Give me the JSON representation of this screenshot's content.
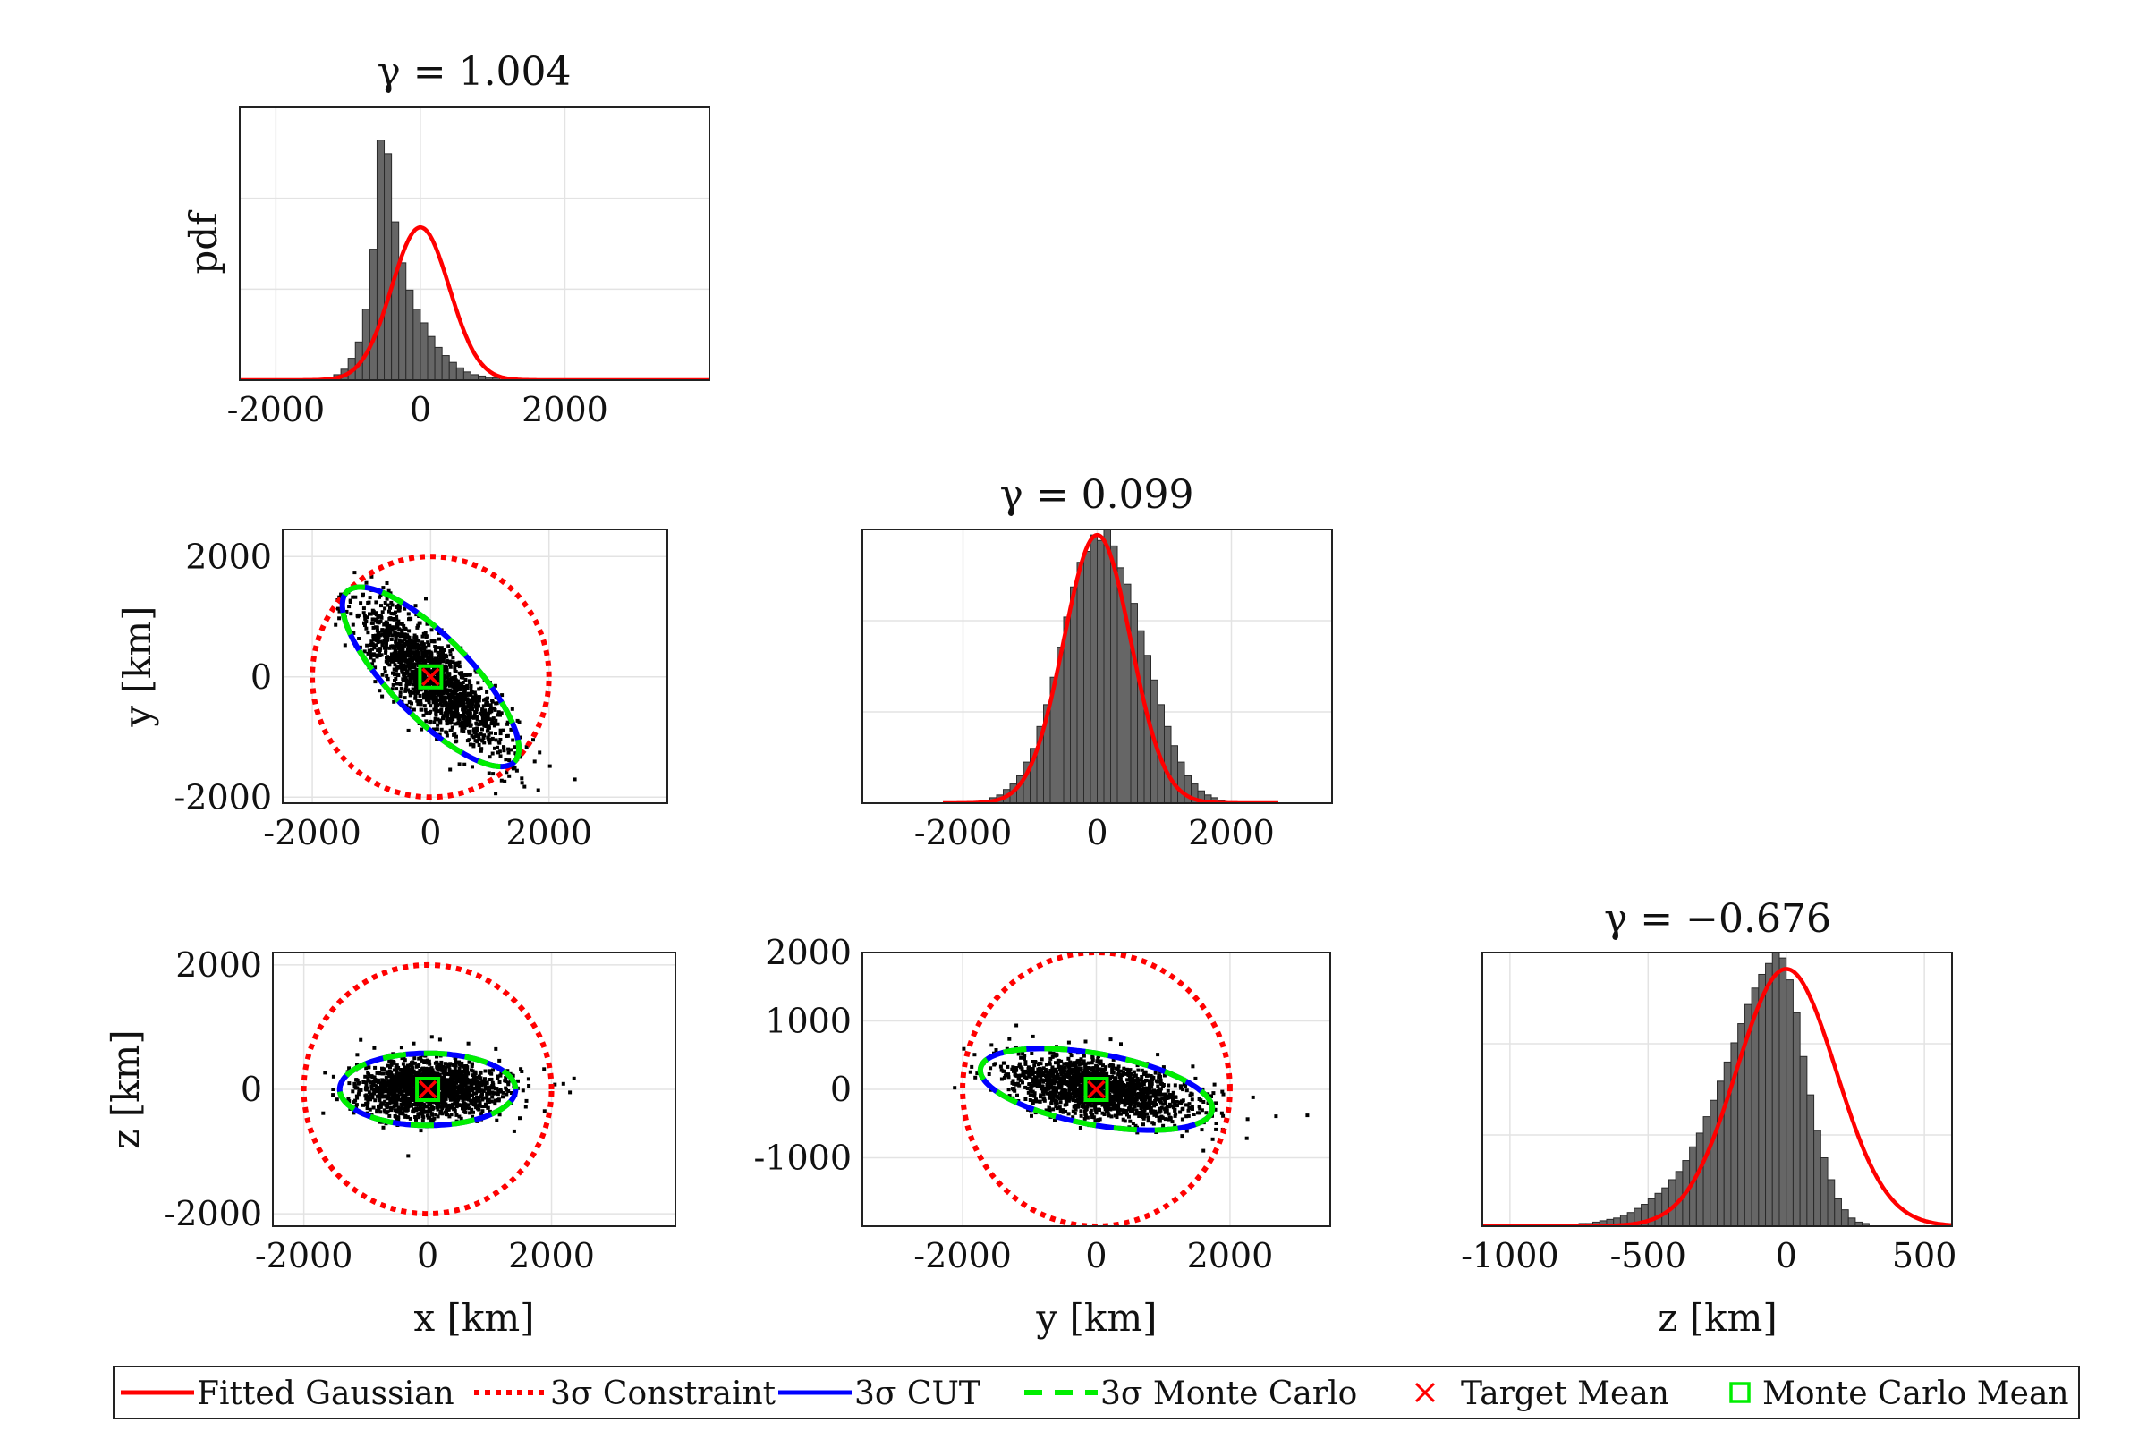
{
  "legend": [
    {
      "label": "Fitted Gaussian",
      "style": "solid",
      "color": "#ff0000"
    },
    {
      "label": "3σ Constraint",
      "style": "dotted",
      "color": "#ff0000"
    },
    {
      "label": "3σ CUT",
      "style": "solid",
      "color": "#0000ff"
    },
    {
      "label": "3σ Monte Carlo",
      "style": "dashed",
      "color": "#00ee00"
    },
    {
      "label": "Target Mean",
      "style": "x-marker",
      "color": "#ff0000"
    },
    {
      "label": "Monte Carlo Mean",
      "style": "square-marker",
      "color": "#00ee00"
    }
  ],
  "colors": {
    "bar_fill": "#666666",
    "scatter": "#000000",
    "gauss": "#ff0000",
    "constraint": "#ff0000",
    "cut": "#0000ff",
    "mc": "#00ee00"
  },
  "chart_data": [
    {
      "id": "hist-x",
      "type": "bar",
      "title": "γ = 1.004",
      "ylabel": "pdf",
      "xlabel": "",
      "xlim": [
        -2500,
        4000
      ],
      "ylim": [
        0,
        1.0
      ],
      "xticks": [
        -2000,
        0,
        2000
      ],
      "grid": true,
      "bin_edges_start": -1400,
      "bin_width": 100,
      "values": [
        0.005,
        0.01,
        0.02,
        0.04,
        0.08,
        0.14,
        0.26,
        0.48,
        0.88,
        0.83,
        0.58,
        0.43,
        0.33,
        0.26,
        0.21,
        0.16,
        0.12,
        0.09,
        0.065,
        0.045,
        0.03,
        0.02,
        0.015,
        0.01,
        0.008
      ],
      "fit": {
        "mean": 0,
        "sigma": 400,
        "peak": 0.56
      }
    },
    {
      "id": "scatter-xy",
      "type": "scatter",
      "xlabel": "",
      "ylabel": "y [km]",
      "xlim": [
        -2500,
        4000
      ],
      "ylim": [
        -2100,
        2450
      ],
      "xticks": [
        -2000,
        0,
        2000
      ],
      "yticks": [
        -2000,
        0,
        2000
      ],
      "grid": true,
      "constraint_radius": 2000,
      "ellipse": {
        "a": 2000,
        "b": 670,
        "angle_deg": -45
      },
      "mean": [
        0,
        0
      ]
    },
    {
      "id": "hist-y",
      "type": "bar",
      "title": "γ = 0.099",
      "xlabel": "",
      "ylabel": "",
      "xlim": [
        -3500,
        3500
      ],
      "ylim": [
        0,
        1.0
      ],
      "xticks": [
        -2000,
        0,
        2000
      ],
      "grid": true,
      "bin_edges_start": -1800,
      "bin_width": 100,
      "values": [
        0.005,
        0.01,
        0.02,
        0.03,
        0.05,
        0.07,
        0.1,
        0.15,
        0.2,
        0.28,
        0.36,
        0.46,
        0.57,
        0.68,
        0.79,
        0.88,
        0.92,
        0.98,
        0.96,
        1.0,
        0.94,
        0.86,
        0.8,
        0.73,
        0.63,
        0.54,
        0.45,
        0.36,
        0.28,
        0.21,
        0.15,
        0.1,
        0.07,
        0.045,
        0.03,
        0.02,
        0.01
      ],
      "fit": {
        "mean": 0,
        "sigma": 500,
        "peak": 0.98,
        "range": [
          -2300,
          2700
        ]
      }
    },
    {
      "id": "scatter-xz",
      "type": "scatter",
      "xlabel": "x [km]",
      "ylabel": "z [km]",
      "xlim": [
        -2500,
        4000
      ],
      "ylim": [
        -2200,
        2200
      ],
      "xticks": [
        -2000,
        0,
        2000
      ],
      "yticks": [
        -2000,
        0,
        2000
      ],
      "grid": true,
      "constraint_radius": 2000,
      "ellipse": {
        "a": 1420,
        "b": 580,
        "angle_deg": 0
      },
      "mean": [
        0,
        0
      ]
    },
    {
      "id": "scatter-yz",
      "type": "scatter",
      "xlabel": "y [km]",
      "ylabel": "",
      "xlim": [
        -3500,
        3500
      ],
      "ylim": [
        -2000,
        2000
      ],
      "xticks": [
        -2000,
        0,
        2000
      ],
      "yticks": [
        -1000,
        0,
        1000,
        2000
      ],
      "grid": true,
      "constraint_radius": 2000,
      "ellipse": {
        "a": 1760,
        "b": 520,
        "angle_deg": -10
      },
      "mean": [
        0,
        0
      ]
    },
    {
      "id": "hist-z",
      "type": "bar",
      "title": "γ = −0.676",
      "xlabel": "z [km]",
      "ylabel": "",
      "xlim": [
        -1100,
        600
      ],
      "ylim": [
        0,
        1.0
      ],
      "xticks": [
        -1000,
        -500,
        0,
        500
      ],
      "grid": true,
      "bin_edges_start": -750,
      "bin_width": 25,
      "values": [
        0.01,
        0.01,
        0.015,
        0.02,
        0.025,
        0.03,
        0.04,
        0.05,
        0.065,
        0.08,
        0.1,
        0.12,
        0.14,
        0.17,
        0.2,
        0.24,
        0.29,
        0.34,
        0.4,
        0.46,
        0.53,
        0.6,
        0.67,
        0.74,
        0.81,
        0.87,
        0.92,
        0.96,
        1.0,
        0.98,
        0.9,
        0.78,
        0.62,
        0.48,
        0.35,
        0.25,
        0.17,
        0.1,
        0.06,
        0.03,
        0.015,
        0.01
      ],
      "fit": {
        "mean": 0,
        "sigma": 180,
        "peak": 0.94
      }
    }
  ]
}
